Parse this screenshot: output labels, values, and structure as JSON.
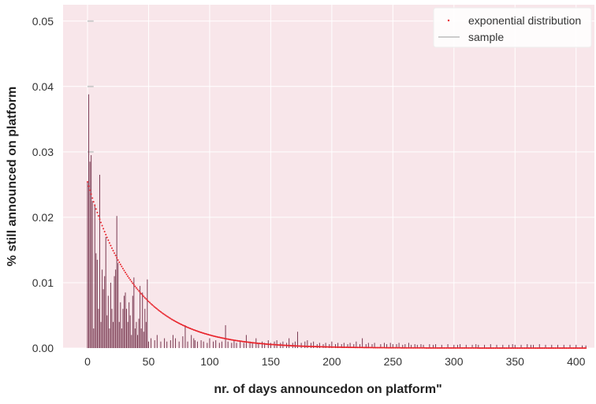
{
  "chart_data": {
    "type": "bar",
    "title": "",
    "xlabel": "nr. of days announcedon on platform\"",
    "ylabel": "% still announced on platform",
    "xlim": [
      -20,
      415
    ],
    "ylim": [
      0,
      0.0525
    ],
    "xticks": [
      0,
      50,
      100,
      150,
      200,
      250,
      300,
      350,
      400
    ],
    "yticks": [
      0.0,
      0.01,
      0.02,
      0.03,
      0.04,
      0.05
    ],
    "xtick_labels": [
      "0",
      "50",
      "100",
      "150",
      "200",
      "250",
      "300",
      "350",
      "400"
    ],
    "ytick_labels": [
      "0.00",
      "0.01",
      "0.02",
      "0.03",
      "0.04",
      "0.05"
    ],
    "grid": true,
    "legend_position": "top-right",
    "legend": [
      {
        "label": "exponential distribution",
        "marker": "dot",
        "color": "#e8222a"
      },
      {
        "label": "sample",
        "marker": "line",
        "color": "#cccccc"
      }
    ],
    "exponential_distribution": {
      "a": 0.0254,
      "rate": 0.0254,
      "x_range": [
        0,
        408
      ],
      "step": 1
    },
    "sample_bars": [
      [
        0,
        0.0255
      ],
      [
        1,
        0.0388
      ],
      [
        2,
        0.0285
      ],
      [
        3,
        0.0295
      ],
      [
        4,
        0.0225
      ],
      [
        5,
        0.003
      ],
      [
        6,
        0.022
      ],
      [
        7,
        0.0145
      ],
      [
        8,
        0.0135
      ],
      [
        9,
        0.006
      ],
      [
        10,
        0.0265
      ],
      [
        11,
        0.004
      ],
      [
        12,
        0.012
      ],
      [
        13,
        0.009
      ],
      [
        14,
        0.011
      ],
      [
        15,
        0.017
      ],
      [
        16,
        0.005
      ],
      [
        17,
        0.008
      ],
      [
        18,
        0.003
      ],
      [
        19,
        0.01
      ],
      [
        20,
        0.006
      ],
      [
        21,
        0.004
      ],
      [
        22,
        0.011
      ],
      [
        23,
        0.012
      ],
      [
        24,
        0.0202
      ],
      [
        25,
        0.013
      ],
      [
        26,
        0.004
      ],
      [
        27,
        0.007
      ],
      [
        28,
        0.003
      ],
      [
        29,
        0.006
      ],
      [
        30,
        0.008
      ],
      [
        31,
        0.0085
      ],
      [
        32,
        0.006
      ],
      [
        33,
        0.004
      ],
      [
        34,
        0.007
      ],
      [
        35,
        0.005
      ],
      [
        36,
        0.002
      ],
      [
        37,
        0.008
      ],
      [
        38,
        0.0108
      ],
      [
        39,
        0.003
      ],
      [
        40,
        0.004
      ],
      [
        41,
        0.002
      ],
      [
        42,
        0.0045
      ],
      [
        43,
        0.0095
      ],
      [
        44,
        0.003
      ],
      [
        45,
        0.0085
      ],
      [
        46,
        0.0025
      ],
      [
        47,
        0.006
      ],
      [
        48,
        0.004
      ],
      [
        49,
        0.0105
      ],
      [
        50,
        0.001
      ],
      [
        52,
        0.0015
      ],
      [
        55,
        0.0012
      ],
      [
        57,
        0.002
      ],
      [
        60,
        0.001
      ],
      [
        63,
        0.0015
      ],
      [
        65,
        0.001
      ],
      [
        68,
        0.0012
      ],
      [
        70,
        0.002
      ],
      [
        72,
        0.0015
      ],
      [
        75,
        0.001
      ],
      [
        78,
        0.0018
      ],
      [
        80,
        0.0035
      ],
      [
        82,
        0.001
      ],
      [
        85,
        0.002
      ],
      [
        87,
        0.0015
      ],
      [
        88,
        0.0012
      ],
      [
        90,
        0.001
      ],
      [
        93,
        0.0012
      ],
      [
        95,
        0.001
      ],
      [
        98,
        0.0008
      ],
      [
        100,
        0.0015
      ],
      [
        103,
        0.001
      ],
      [
        105,
        0.0012
      ],
      [
        108,
        0.0008
      ],
      [
        110,
        0.001
      ],
      [
        113,
        0.0035
      ],
      [
        115,
        0.001
      ],
      [
        118,
        0.0008
      ],
      [
        120,
        0.0012
      ],
      [
        122,
        0.0008
      ],
      [
        125,
        0.001
      ],
      [
        128,
        0.0008
      ],
      [
        130,
        0.002
      ],
      [
        133,
        0.001
      ],
      [
        135,
        0.0008
      ],
      [
        138,
        0.0015
      ],
      [
        140,
        0.0008
      ],
      [
        143,
        0.001
      ],
      [
        145,
        0.0008
      ],
      [
        148,
        0.0012
      ],
      [
        150,
        0.0008
      ],
      [
        153,
        0.001
      ],
      [
        155,
        0.0012
      ],
      [
        158,
        0.0008
      ],
      [
        160,
        0.001
      ],
      [
        163,
        0.0008
      ],
      [
        165,
        0.0015
      ],
      [
        168,
        0.0008
      ],
      [
        170,
        0.001
      ],
      [
        172,
        0.0025
      ],
      [
        175,
        0.0008
      ],
      [
        178,
        0.001
      ],
      [
        180,
        0.0012
      ],
      [
        183,
        0.0008
      ],
      [
        185,
        0.001
      ],
      [
        188,
        0.0006
      ],
      [
        190,
        0.0008
      ],
      [
        193,
        0.0006
      ],
      [
        195,
        0.0008
      ],
      [
        198,
        0.0006
      ],
      [
        200,
        0.001
      ],
      [
        203,
        0.0006
      ],
      [
        205,
        0.0008
      ],
      [
        208,
        0.0006
      ],
      [
        210,
        0.0008
      ],
      [
        213,
        0.0006
      ],
      [
        215,
        0.0008
      ],
      [
        218,
        0.0006
      ],
      [
        220,
        0.001
      ],
      [
        223,
        0.0006
      ],
      [
        225,
        0.0015
      ],
      [
        228,
        0.0006
      ],
      [
        230,
        0.0008
      ],
      [
        233,
        0.0006
      ],
      [
        235,
        0.0008
      ],
      [
        240,
        0.0006
      ],
      [
        243,
        0.0008
      ],
      [
        245,
        0.0006
      ],
      [
        248,
        0.0008
      ],
      [
        250,
        0.0006
      ],
      [
        253,
        0.0006
      ],
      [
        255,
        0.0008
      ],
      [
        258,
        0.0005
      ],
      [
        260,
        0.0006
      ],
      [
        263,
        0.0008
      ],
      [
        265,
        0.0005
      ],
      [
        268,
        0.0006
      ],
      [
        270,
        0.0005
      ],
      [
        273,
        0.0006
      ],
      [
        275,
        0.0005
      ],
      [
        280,
        0.0006
      ],
      [
        283,
        0.0005
      ],
      [
        285,
        0.0006
      ],
      [
        290,
        0.0005
      ],
      [
        295,
        0.0006
      ],
      [
        300,
        0.0005
      ],
      [
        303,
        0.0005
      ],
      [
        305,
        0.0006
      ],
      [
        310,
        0.0005
      ],
      [
        315,
        0.0005
      ],
      [
        318,
        0.0006
      ],
      [
        320,
        0.0005
      ],
      [
        325,
        0.0005
      ],
      [
        330,
        0.0006
      ],
      [
        335,
        0.0005
      ],
      [
        340,
        0.0005
      ],
      [
        345,
        0.0005
      ],
      [
        348,
        0.0006
      ],
      [
        350,
        0.0005
      ],
      [
        355,
        0.0005
      ],
      [
        360,
        0.0006
      ],
      [
        363,
        0.0005
      ],
      [
        365,
        0.0005
      ],
      [
        370,
        0.0006
      ],
      [
        375,
        0.0005
      ],
      [
        380,
        0.0005
      ],
      [
        385,
        0.0005
      ],
      [
        390,
        0.0005
      ],
      [
        395,
        0.0005
      ],
      [
        400,
        0.0005
      ],
      [
        405,
        0.0004
      ],
      [
        408,
        0.0004
      ]
    ],
    "colors": {
      "plot_background": "#f8e6ea",
      "grid": "#ffffff",
      "bar": "#7a3a52",
      "curve": "#e8222a",
      "sample_legend_line": "#cccccc"
    }
  }
}
